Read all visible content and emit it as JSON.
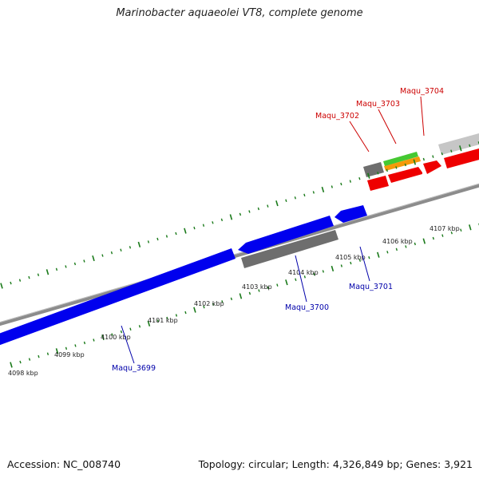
{
  "title": "Marinobacter aquaeolei VT8, complete genome",
  "footer": {
    "accession": "Accession: NC_008740",
    "summary": "Topology: circular; Length: 4,326,849 bp; Genes: 3,921"
  },
  "tick_labels": [
    "4098 kbp",
    "4099 kbp",
    "4100 kbp",
    "4101 kbp",
    "4102 kbp",
    "4103 kbp",
    "4104 kbp",
    "4105 kbp",
    "4106 kbp",
    "4107 kbp"
  ],
  "genes_forward": [
    {
      "name": "Maqu_3702",
      "color": "#cc0000"
    },
    {
      "name": "Maqu_3703",
      "color": "#cc0000"
    },
    {
      "name": "Maqu_3704",
      "color": "#cc0000"
    }
  ],
  "genes_reverse": [
    {
      "name": "Maqu_3699",
      "color": "#0000aa"
    },
    {
      "name": "Maqu_3700",
      "color": "#0000aa"
    },
    {
      "name": "Maqu_3701",
      "color": "#0000aa"
    }
  ],
  "colors": {
    "forward_cds": "#ff0000",
    "reverse_cds": "#0000ee",
    "tick": "#1a7a1a",
    "backbone": "#808080",
    "grey_feature": "#707070",
    "light_feature": "#c8c8c8",
    "green_feature": "#44cc33",
    "orange_feature": "#ff9900"
  }
}
